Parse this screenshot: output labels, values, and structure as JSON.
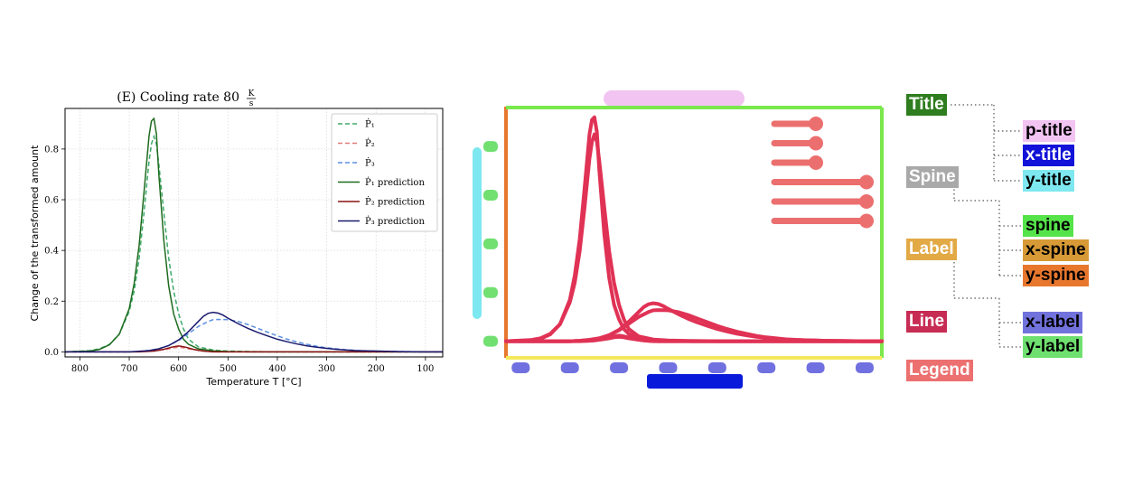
{
  "chart_data": {
    "type": "line",
    "title": "(E) Cooling rate 80",
    "title_unit_num": "K",
    "title_unit_den": "s",
    "xlabel": "Temperature T [°C]",
    "ylabel": "Change of the transformed amount",
    "xlim": [
      830,
      65
    ],
    "ylim": [
      -0.02,
      0.96
    ],
    "x_inverted": true,
    "grid": true,
    "legend_position": "top-right",
    "xticks": [
      800,
      700,
      600,
      500,
      400,
      300,
      200,
      100
    ],
    "yticks": [
      0.0,
      0.2,
      0.4,
      0.6,
      0.8
    ],
    "ytick_labels": [
      "0.0",
      "0.2",
      "0.4",
      "0.6",
      "0.8"
    ],
    "series": [
      {
        "name": "P1",
        "style": "dashed",
        "color": "#3daa6a",
        "x": [
          830,
          780,
          760,
          740,
          720,
          700,
          690,
          680,
          670,
          660,
          655,
          650,
          645,
          640,
          630,
          620,
          610,
          600,
          590,
          580,
          560,
          530,
          500,
          450,
          400,
          300,
          65
        ],
        "y": [
          0,
          0.005,
          0.012,
          0.03,
          0.07,
          0.16,
          0.24,
          0.37,
          0.55,
          0.75,
          0.82,
          0.85,
          0.82,
          0.74,
          0.55,
          0.37,
          0.24,
          0.15,
          0.09,
          0.05,
          0.02,
          0.007,
          0.003,
          0.001,
          0,
          0,
          0
        ]
      },
      {
        "name": "P2",
        "style": "dashed",
        "color": "#e07a7a",
        "x": [
          830,
          700,
          660,
          640,
          620,
          610,
          600,
          590,
          580,
          560,
          540,
          520,
          500,
          65
        ],
        "y": [
          0,
          0,
          0.002,
          0.006,
          0.012,
          0.016,
          0.018,
          0.016,
          0.012,
          0.006,
          0.002,
          0,
          0,
          0
        ]
      },
      {
        "name": "P3",
        "style": "dashed",
        "color": "#5b8fe0",
        "x": [
          830,
          700,
          680,
          660,
          640,
          620,
          600,
          580,
          560,
          540,
          530,
          520,
          500,
          480,
          460,
          440,
          420,
          400,
          380,
          360,
          340,
          320,
          300,
          280,
          260,
          240,
          220,
          200,
          180,
          150,
          100,
          65
        ],
        "y": [
          0,
          0,
          0.002,
          0.006,
          0.012,
          0.025,
          0.045,
          0.072,
          0.1,
          0.12,
          0.127,
          0.128,
          0.127,
          0.12,
          0.108,
          0.093,
          0.078,
          0.063,
          0.05,
          0.039,
          0.03,
          0.022,
          0.016,
          0.012,
          0.008,
          0.006,
          0.004,
          0.003,
          0.002,
          0.001,
          0,
          0
        ]
      },
      {
        "name": "P1 prediction",
        "style": "solid",
        "color": "#1f6b1f",
        "x": [
          830,
          780,
          760,
          740,
          720,
          700,
          690,
          680,
          670,
          660,
          655,
          650,
          645,
          640,
          630,
          620,
          610,
          600,
          590,
          580,
          560,
          530,
          500,
          450,
          400,
          300,
          65
        ],
        "y": [
          0,
          0.003,
          0.01,
          0.028,
          0.07,
          0.17,
          0.27,
          0.42,
          0.63,
          0.85,
          0.91,
          0.92,
          0.86,
          0.7,
          0.44,
          0.26,
          0.15,
          0.09,
          0.05,
          0.03,
          0.012,
          0.004,
          0.001,
          0,
          0,
          0,
          0
        ]
      },
      {
        "name": "P2 prediction",
        "style": "solid",
        "color": "#8a1414",
        "x": [
          830,
          680,
          650,
          630,
          615,
          605,
          600,
          595,
          585,
          570,
          550,
          530,
          65
        ],
        "y": [
          0,
          0,
          0.003,
          0.01,
          0.018,
          0.022,
          0.023,
          0.022,
          0.018,
          0.01,
          0.003,
          0,
          0
        ]
      },
      {
        "name": "P3 prediction",
        "style": "solid",
        "color": "#1a1a6e",
        "x": [
          830,
          700,
          680,
          660,
          640,
          620,
          600,
          580,
          560,
          550,
          540,
          530,
          520,
          510,
          500,
          480,
          460,
          440,
          420,
          400,
          380,
          360,
          340,
          320,
          300,
          280,
          260,
          240,
          220,
          200,
          180,
          150,
          100,
          65
        ],
        "y": [
          0,
          0,
          0.002,
          0.005,
          0.012,
          0.025,
          0.047,
          0.08,
          0.12,
          0.14,
          0.152,
          0.156,
          0.153,
          0.145,
          0.133,
          0.112,
          0.093,
          0.077,
          0.063,
          0.05,
          0.04,
          0.031,
          0.024,
          0.018,
          0.014,
          0.01,
          0.007,
          0.005,
          0.004,
          0.003,
          0.002,
          0.001,
          0,
          0
        ]
      }
    ],
    "legend": [
      {
        "label": "Ṗ₁",
        "color": "#3daa6a",
        "style": "dashed"
      },
      {
        "label": "Ṗ₂",
        "color": "#e07a7a",
        "style": "dashed"
      },
      {
        "label": "Ṗ₃",
        "color": "#5b8fe0",
        "style": "dashed"
      },
      {
        "label": "Ṗ₁ prediction",
        "color": "#1f6b1f",
        "style": "solid"
      },
      {
        "label": "Ṗ₂ prediction",
        "color": "#8a1414",
        "style": "solid"
      },
      {
        "label": "Ṗ₃ prediction",
        "color": "#1a1a6e",
        "style": "solid"
      }
    ]
  },
  "sketch": {
    "colors": {
      "title": "#f2c4f2",
      "spine": "#7ae84d",
      "x_spine": "#f5e85c",
      "y_spine": "#e8772e",
      "line": "#e03255",
      "legend": "#ec6f6f",
      "x_label": "#7070e0",
      "y_label": "#71e071",
      "x_title": "#0a1adb",
      "y_title": "#7ee8f0"
    }
  },
  "taxonomy": {
    "title": {
      "label": "Title",
      "bg": "#2e7d1e",
      "children": [
        {
          "label": "p-title",
          "bg": "#f2c4f2"
        },
        {
          "label": "x-title",
          "bg": "#1212d8"
        },
        {
          "label": "y-title",
          "bg": "#7ee8f0"
        }
      ]
    },
    "spine": {
      "label": "Spine",
      "bg": "#a9a9a9",
      "children": [
        {
          "label": "spine",
          "bg": "#55e34a"
        },
        {
          "label": "x-spine",
          "bg": "#d79a36"
        },
        {
          "label": "y-spine",
          "bg": "#e8772e"
        }
      ]
    },
    "label": {
      "label": "Label",
      "bg": "#e2a945",
      "children": [
        {
          "label": "x-label",
          "bg": "#7272dd"
        },
        {
          "label": "y-label",
          "bg": "#6fe06f"
        }
      ]
    },
    "line": {
      "label": "Line",
      "bg": "#c72c54"
    },
    "legend": {
      "label": "Legend",
      "bg": "#ec7070"
    }
  }
}
